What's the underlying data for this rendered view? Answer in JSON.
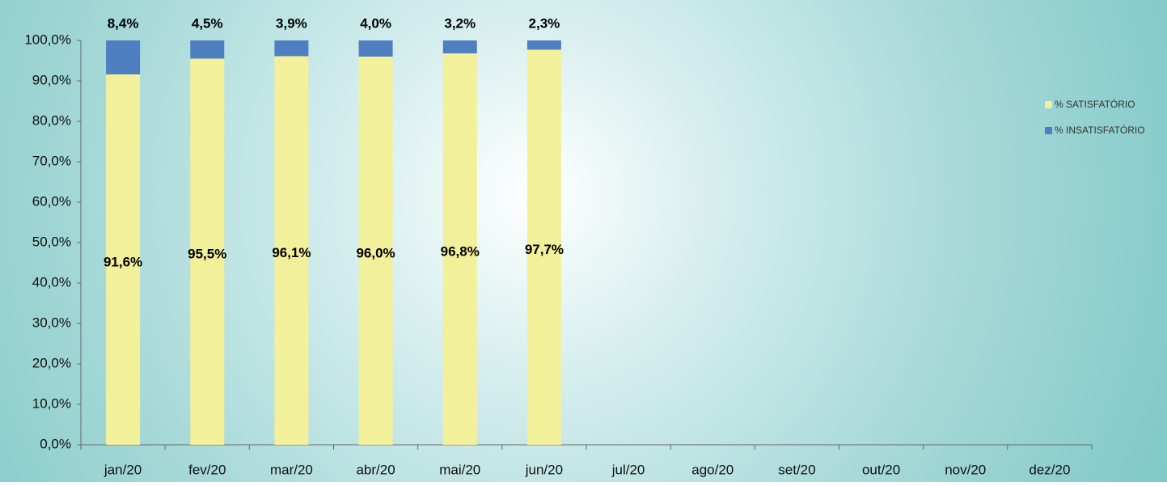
{
  "chart_data": {
    "type": "stacked-bar",
    "categories": [
      "jan/20",
      "fev/20",
      "mar/20",
      "abr/20",
      "mai/20",
      "jun/20",
      "jul/20",
      "ago/20",
      "set/20",
      "out/20",
      "nov/20",
      "dez/20"
    ],
    "series": [
      {
        "name": "% SATISFATÓRIO",
        "color": "#f3f09b",
        "values": [
          91.6,
          95.5,
          96.1,
          96.0,
          96.8,
          97.7,
          null,
          null,
          null,
          null,
          null,
          null
        ],
        "value_labels": [
          "91,6%",
          "95,5%",
          "96,1%",
          "96,0%",
          "96,8%",
          "97,7%",
          null,
          null,
          null,
          null,
          null,
          null
        ]
      },
      {
        "name": "% INSATISFATÓRIO",
        "color": "#4f7fc1",
        "values": [
          8.4,
          4.5,
          3.9,
          4.0,
          3.2,
          2.3,
          null,
          null,
          null,
          null,
          null,
          null
        ],
        "value_labels": [
          "8,4%",
          "4,5%",
          "3,9%",
          "4,0%",
          "3,2%",
          "2,3%",
          null,
          null,
          null,
          null,
          null,
          null
        ]
      }
    ],
    "ylim": [
      0,
      100
    ],
    "yticks": [
      {
        "value": 0,
        "label": "0,0%"
      },
      {
        "value": 10,
        "label": "10,0%"
      },
      {
        "value": 20,
        "label": "20,0%"
      },
      {
        "value": 30,
        "label": "30,0%"
      },
      {
        "value": 40,
        "label": "40,0%"
      },
      {
        "value": 50,
        "label": "50,0%"
      },
      {
        "value": 60,
        "label": "60,0%"
      },
      {
        "value": 70,
        "label": "70,0%"
      },
      {
        "value": 80,
        "label": "80,0%"
      },
      {
        "value": 90,
        "label": "90,0%"
      },
      {
        "value": 100,
        "label": "100,0%"
      }
    ],
    "legend": "right"
  }
}
